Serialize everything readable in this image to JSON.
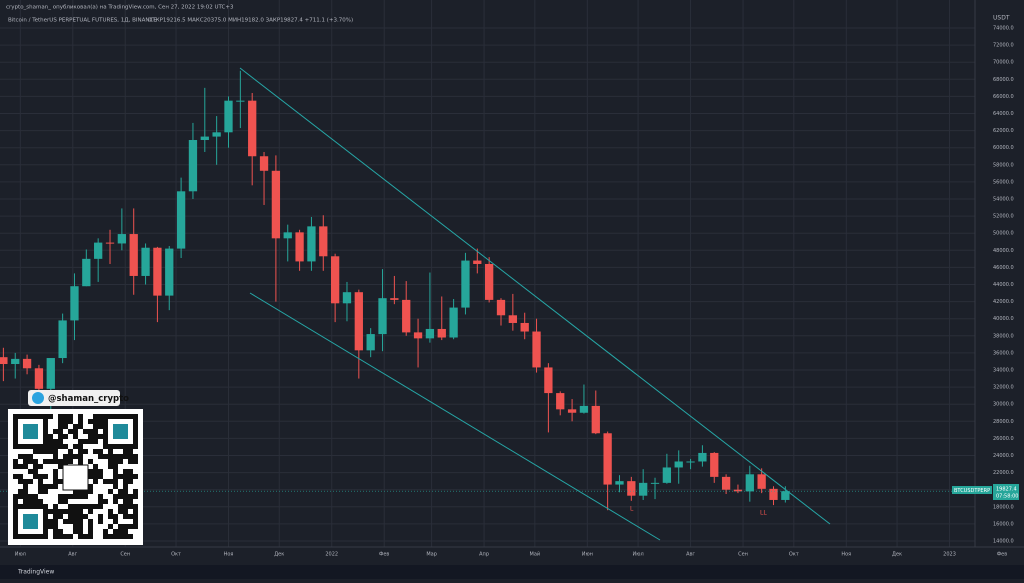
{
  "header": {
    "publisher": "crypto_shaman_ опубликовал(а) на TradingView.com, Сен 27, 2022 19:02 UTC+3",
    "ticker": "Bitcoin / TetherUS PERPETUAL FUTURES, 1Д, BINANCE",
    "ohlc": "ОТКР19216.5 МАКС20375.0 МИН19182.0 ЗАКР19827.4 +711.1 (+3.70%)"
  },
  "chart_data": {
    "type": "candlestick",
    "currency": "USDT",
    "symbol_label": "BTCUSDTPERP",
    "price_label": "19827.4",
    "countdown": "07:58:00",
    "annotations": [
      "L",
      "LL"
    ],
    "up_color": "#26a69a",
    "down_color": "#ef5350",
    "grid": true,
    "x": [
      -10,
      -3,
      4,
      11,
      18,
      25,
      32,
      39,
      46,
      53,
      60,
      67,
      74,
      81,
      88,
      95,
      102,
      109,
      116,
      123,
      130,
      137,
      144,
      151,
      158,
      165,
      172,
      179,
      186,
      193,
      200,
      207,
      214,
      221,
      228,
      235,
      242,
      249,
      256,
      263,
      270,
      277,
      284,
      291,
      298,
      305,
      312,
      319,
      326,
      333,
      340,
      347,
      354,
      361,
      368,
      375,
      382,
      389,
      396,
      403,
      410,
      417,
      424,
      431,
      438,
      445,
      452
    ],
    "open": [
      35500,
      34700,
      35300,
      34200,
      31800,
      35400,
      39800,
      43800,
      47000,
      48900,
      48800,
      49900,
      45000,
      48300,
      42700,
      48200,
      54900,
      60900,
      61300,
      61800,
      65500,
      65500,
      59000,
      57300,
      49400,
      50100,
      46700,
      50800,
      47300,
      41800,
      43100,
      36300,
      38200,
      42400,
      42200,
      38400,
      37700,
      38800,
      37800,
      41300,
      46800,
      46400,
      42200,
      40400,
      39500,
      38500,
      34300,
      31300,
      29400,
      29000,
      29800,
      26600,
      20600,
      21000,
      19300,
      20800,
      20800,
      22600,
      23300,
      23300,
      24300,
      21500,
      20000,
      19800,
      21800,
      20100,
      18800
    ],
    "high": [
      36600,
      36000,
      35800,
      34600,
      35400,
      40600,
      45300,
      48100,
      49400,
      50400,
      52900,
      52900,
      48800,
      48400,
      48500,
      56500,
      62900,
      67000,
      63700,
      66000,
      69000,
      66400,
      59500,
      59100,
      51000,
      50400,
      51900,
      52100,
      47600,
      44300,
      43400,
      38900,
      45800,
      45000,
      44400,
      40000,
      45400,
      42600,
      42300,
      47700,
      48200,
      47200,
      42400,
      42900,
      40700,
      40000,
      34800,
      31500,
      30600,
      32300,
      31600,
      26800,
      21700,
      21500,
      22400,
      21400,
      24200,
      24600,
      23600,
      25200,
      24400,
      21800,
      20600,
      22800,
      22500,
      20400,
      20400
    ],
    "low": [
      32700,
      33000,
      33500,
      31000,
      29300,
      34800,
      37500,
      43800,
      44300,
      46400,
      48000,
      42800,
      44000,
      39600,
      41000,
      47100,
      54000,
      59500,
      58000,
      60000,
      62300,
      55600,
      53300,
      42000,
      46700,
      45600,
      45600,
      45600,
      39600,
      39700,
      33000,
      35500,
      36200,
      41700,
      38000,
      34300,
      37200,
      37500,
      37600,
      40500,
      45300,
      41900,
      39200,
      38600,
      37600,
      33700,
      26700,
      28700,
      28000,
      28900,
      26500,
      17600,
      19700,
      18700,
      18800,
      18900,
      20700,
      20700,
      22400,
      22700,
      20800,
      19500,
      19600,
      18600,
      19600,
      18200,
      18500
    ],
    "close": [
      34700,
      35300,
      34200,
      31800,
      35400,
      39800,
      43800,
      47000,
      48900,
      48800,
      49900,
      45000,
      48300,
      42700,
      48200,
      54900,
      60900,
      61300,
      61800,
      65500,
      65500,
      59000,
      57300,
      49400,
      50100,
      46700,
      50800,
      47300,
      41800,
      43100,
      36300,
      38200,
      42400,
      42200,
      38400,
      37700,
      38800,
      37800,
      41300,
      46800,
      46400,
      42200,
      40400,
      39500,
      38500,
      34300,
      31300,
      29400,
      29000,
      29800,
      26600,
      20600,
      21000,
      19300,
      20800,
      20800,
      22600,
      23300,
      23300,
      24300,
      21500,
      20000,
      19800,
      21800,
      20100,
      18800,
      19827
    ],
    "xlim": [
      -12,
      593
    ],
    "xticks": [
      {
        "value": 0,
        "label": "Июл"
      },
      {
        "value": 31,
        "label": "Авг"
      },
      {
        "value": 62,
        "label": "Сен"
      },
      {
        "value": 92,
        "label": "Окт"
      },
      {
        "value": 123,
        "label": "Ноя"
      },
      {
        "value": 153,
        "label": "Дек"
      },
      {
        "value": 184,
        "label": "2022"
      },
      {
        "value": 215,
        "label": "Фев"
      },
      {
        "value": 243,
        "label": "Мар"
      },
      {
        "value": 274,
        "label": "Апр"
      },
      {
        "value": 304,
        "label": "Май"
      },
      {
        "value": 335,
        "label": "Июн"
      },
      {
        "value": 365,
        "label": "Июл"
      },
      {
        "value": 396,
        "label": "Авг"
      },
      {
        "value": 427,
        "label": "Сен"
      },
      {
        "value": 457,
        "label": "Окт"
      },
      {
        "value": 488,
        "label": "Ноя"
      },
      {
        "value": 518,
        "label": "Дек"
      },
      {
        "value": 549,
        "label": "2023"
      },
      {
        "value": 580,
        "label": "Фев"
      }
    ],
    "ylim": [
      13000,
      75000
    ],
    "yticks": [
      {
        "value": 14000,
        "label": "14000.0"
      },
      {
        "value": 16000,
        "label": "16000.0"
      },
      {
        "value": 18000,
        "label": "18000.0"
      },
      {
        "value": 20000,
        "label": "20000.0"
      },
      {
        "value": 22000,
        "label": "22000.0"
      },
      {
        "value": 24000,
        "label": "24000.0"
      },
      {
        "value": 26000,
        "label": "26000.0"
      },
      {
        "value": 28000,
        "label": "28000.0"
      },
      {
        "value": 30000,
        "label": "30000.0"
      },
      {
        "value": 32000,
        "label": "32000.0"
      },
      {
        "value": 34000,
        "label": "34000.0"
      },
      {
        "value": 36000,
        "label": "36000.0"
      },
      {
        "value": 38000,
        "label": "38000.0"
      },
      {
        "value": 40000,
        "label": "40000.0"
      },
      {
        "value": 42000,
        "label": "42000.0"
      },
      {
        "value": 44000,
        "label": "44000.0"
      },
      {
        "value": 46000,
        "label": "46000.0"
      },
      {
        "value": 48000,
        "label": "48000.0"
      },
      {
        "value": 50000,
        "label": "50000.0"
      },
      {
        "value": 52000,
        "label": "52000.0"
      },
      {
        "value": 54000,
        "label": "54000.0"
      },
      {
        "value": 56000,
        "label": "56000.0"
      },
      {
        "value": 58000,
        "label": "58000.0"
      },
      {
        "value": 60000,
        "label": "60000.0"
      },
      {
        "value": 62000,
        "label": "62000.0"
      },
      {
        "value": 64000,
        "label": "64000.0"
      },
      {
        "value": 66000,
        "label": "66000.0"
      },
      {
        "value": 68000,
        "label": "68000.0"
      },
      {
        "value": 70000,
        "label": "70000.0"
      },
      {
        "value": 72000,
        "label": "72000.0"
      },
      {
        "value": 74000,
        "label": "74000.0"
      }
    ]
  },
  "promo": {
    "telegram": "@shaman_crypto"
  },
  "footer": {
    "brand": "TradingView"
  }
}
